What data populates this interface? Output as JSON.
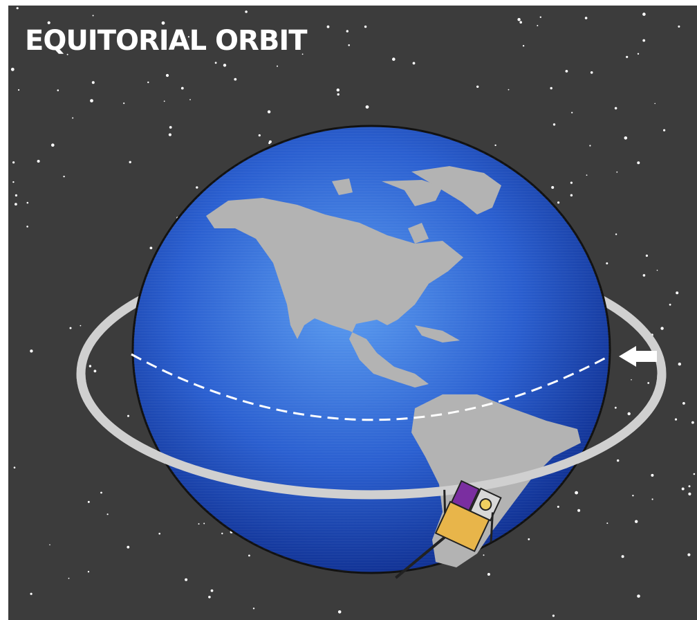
{
  "title": "EQUITORIAL ORBIT"
}
